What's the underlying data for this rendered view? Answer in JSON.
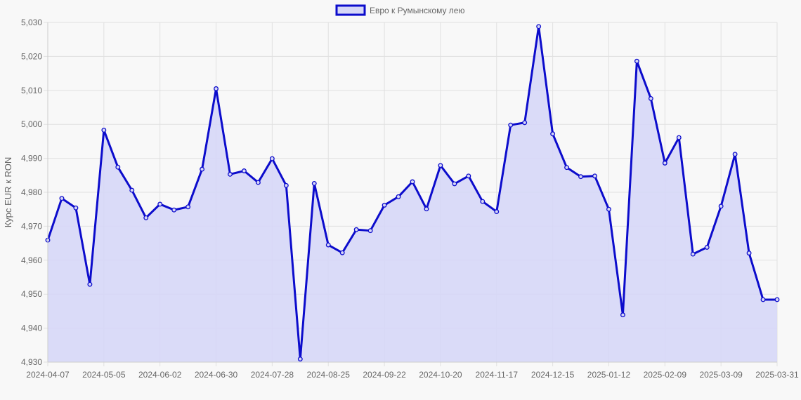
{
  "chart_data": {
    "type": "line",
    "title": "",
    "xlabel": "",
    "ylabel": "Курс EUR к RON",
    "legend": {
      "label": "Евро к Румынскому лею",
      "placement": "top-center"
    },
    "grid": true,
    "colors": {
      "line": "#0c0ccc",
      "fill": "#d6d7f7",
      "grid": "#e0e0e0",
      "text": "#666666"
    },
    "ylim": [
      4.93,
      5.03
    ],
    "y_ticks": [
      4.93,
      4.94,
      4.95,
      4.96,
      4.97,
      4.98,
      4.99,
      5.0,
      5.01,
      5.02,
      5.03
    ],
    "y_tick_labels": [
      "4,930",
      "4,940",
      "4,950",
      "4,960",
      "4,970",
      "4,980",
      "4,990",
      "5,000",
      "5,010",
      "5,020",
      "5,030"
    ],
    "x_tick_labels": [
      "2024-04-07",
      "2024-05-05",
      "2024-06-02",
      "2024-06-30",
      "2024-07-28",
      "2024-08-25",
      "2024-09-22",
      "2024-10-20",
      "2024-11-17",
      "2024-12-15",
      "2025-01-12",
      "2025-02-09",
      "2025-03-09",
      "2025-03-31"
    ],
    "x_tick_label_index": [
      0,
      4,
      8,
      12,
      16,
      20,
      24,
      28,
      32,
      36,
      40,
      44,
      48,
      52
    ],
    "x": [
      "2024-04-07",
      "2024-04-14",
      "2024-04-21",
      "2024-04-28",
      "2024-05-05",
      "2024-05-12",
      "2024-05-19",
      "2024-05-26",
      "2024-06-02",
      "2024-06-09",
      "2024-06-16",
      "2024-06-23",
      "2024-06-30",
      "2024-07-07",
      "2024-07-14",
      "2024-07-21",
      "2024-07-28",
      "2024-08-04",
      "2024-08-11",
      "2024-08-18",
      "2024-08-25",
      "2024-09-01",
      "2024-09-08",
      "2024-09-15",
      "2024-09-22",
      "2024-09-29",
      "2024-10-06",
      "2024-10-13",
      "2024-10-20",
      "2024-10-27",
      "2024-11-03",
      "2024-11-10",
      "2024-11-17",
      "2024-11-24",
      "2024-12-01",
      "2024-12-08",
      "2024-12-15",
      "2024-12-22",
      "2024-12-29",
      "2025-01-05",
      "2025-01-12",
      "2025-01-19",
      "2025-01-26",
      "2025-02-02",
      "2025-02-09",
      "2025-02-16",
      "2025-02-23",
      "2025-03-02",
      "2025-03-09",
      "2025-03-16",
      "2025-03-23",
      "2025-03-30",
      "2025-03-31"
    ],
    "series": [
      {
        "name": "Евро к Румынскому лею",
        "values": [
          4.9659,
          4.9782,
          4.9754,
          4.9529,
          4.9983,
          4.9874,
          4.9806,
          4.9725,
          4.9765,
          4.9748,
          4.9757,
          4.9868,
          5.0105,
          4.9853,
          4.9863,
          4.9829,
          4.9899,
          4.982,
          4.9309,
          4.9826,
          4.9645,
          4.9622,
          4.969,
          4.9687,
          4.9762,
          4.9787,
          4.9831,
          4.9751,
          4.9879,
          4.9825,
          4.9848,
          4.9773,
          4.9743,
          4.9998,
          5.0005,
          5.0288,
          4.9972,
          4.9873,
          4.9846,
          4.9848,
          4.975,
          4.9439,
          5.0186,
          5.0076,
          4.9886,
          4.9961,
          4.9618,
          4.9638,
          4.9759,
          4.9912,
          4.9621,
          4.9484,
          4.9484
        ]
      }
    ]
  }
}
